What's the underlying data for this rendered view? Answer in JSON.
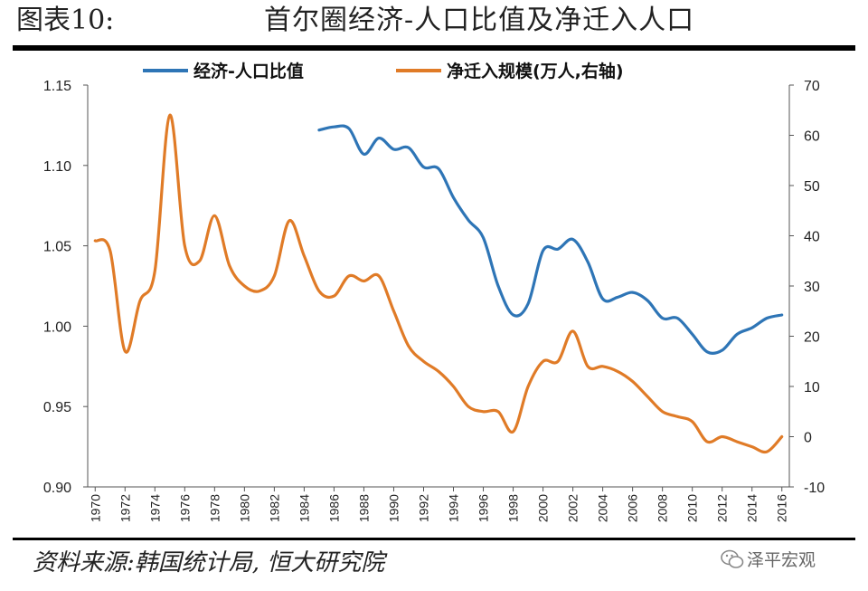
{
  "header": {
    "figure_number": "图表10:",
    "title": "首尔圈经济-人口比值及净迁入人口"
  },
  "footer": {
    "source": "资料来源:韩国统计局, 恒大研究院",
    "watermark": "泽平宏观"
  },
  "icons": {
    "watermark": "wechat-icon"
  },
  "colors": {
    "economy_population_ratio": "#2E75B6",
    "net_migration": "#E07B27"
  },
  "chart_data": {
    "type": "line",
    "legend_position": "top",
    "grid": false,
    "x_ticks": [
      "1970",
      "1972",
      "1974",
      "1976",
      "1978",
      "1980",
      "1982",
      "1984",
      "1986",
      "1988",
      "1990",
      "1992",
      "1994",
      "1996",
      "1998",
      "2000",
      "2002",
      "2004",
      "2006",
      "2008",
      "2010",
      "2012",
      "2014",
      "2016"
    ],
    "xlim": [
      1969.5,
      2016.5
    ],
    "y_left": {
      "ylim": [
        0.9,
        1.15
      ],
      "ticks": [
        "0.90",
        "0.95",
        "1.00",
        "1.05",
        "1.10",
        "1.15"
      ]
    },
    "y_right": {
      "ylim": [
        -10,
        70
      ],
      "ticks": [
        "-10",
        "0",
        "10",
        "20",
        "30",
        "40",
        "50",
        "60",
        "70"
      ]
    },
    "series": [
      {
        "name": "经济-人口比值",
        "axis": "left",
        "color": "#2E75B6",
        "x": [
          1985,
          1986,
          1987,
          1988,
          1989,
          1990,
          1991,
          1992,
          1993,
          1994,
          1995,
          1996,
          1997,
          1998,
          1999,
          2000,
          2001,
          2002,
          2003,
          2004,
          2005,
          2006,
          2007,
          2008,
          2009,
          2010,
          2011,
          2012,
          2013,
          2014,
          2015,
          2016
        ],
        "y": [
          1.122,
          1.124,
          1.123,
          1.107,
          1.117,
          1.11,
          1.111,
          1.099,
          1.098,
          1.08,
          1.066,
          1.055,
          1.025,
          1.007,
          1.014,
          1.047,
          1.048,
          1.054,
          1.04,
          1.017,
          1.018,
          1.021,
          1.016,
          1.005,
          1.005,
          0.995,
          0.984,
          0.985,
          0.995,
          0.999,
          1.005,
          1.007
        ]
      },
      {
        "name": "净迁入规模(万人,右轴)",
        "axis": "right",
        "color": "#E07B27",
        "x": [
          1970,
          1971,
          1972,
          1973,
          1974,
          1975,
          1976,
          1977,
          1978,
          1979,
          1980,
          1981,
          1982,
          1983,
          1984,
          1985,
          1986,
          1987,
          1988,
          1989,
          1990,
          1991,
          1992,
          1993,
          1994,
          1995,
          1996,
          1997,
          1998,
          1999,
          2000,
          2001,
          2002,
          2003,
          2004,
          2005,
          2006,
          2007,
          2008,
          2009,
          2010,
          2011,
          2012,
          2013,
          2014,
          2015,
          2016
        ],
        "y": [
          39,
          37,
          17,
          27,
          33,
          64,
          38,
          35,
          44,
          34,
          30,
          29,
          32,
          43,
          36,
          29,
          28,
          32,
          31,
          32,
          25,
          18,
          15,
          13,
          10,
          6,
          5,
          5,
          1,
          10,
          15,
          15,
          21,
          14,
          14,
          13,
          11,
          8,
          5,
          4,
          3,
          -1,
          0,
          -1,
          -2,
          -3,
          0
        ]
      }
    ]
  }
}
